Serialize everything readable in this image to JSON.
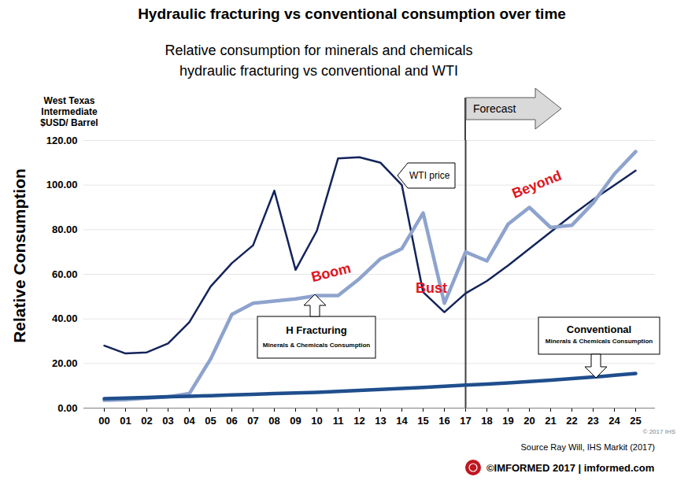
{
  "chart_data": {
    "type": "line",
    "title": "Hydraulic fracturing vs conventional consumption over time",
    "subtitle": "Relative consumption for minerals and chemicals\nhydraulic fracturing vs conventional and WTI",
    "ylabel": "Relative Consumption",
    "categories": [
      "00",
      "01",
      "02",
      "03",
      "04",
      "05",
      "06",
      "07",
      "08",
      "09",
      "10",
      "11",
      "12",
      "13",
      "14",
      "15",
      "16",
      "17",
      "18",
      "19",
      "20",
      "21",
      "22",
      "23",
      "24",
      "25"
    ],
    "series": [
      {
        "name": "WTI price",
        "color": "#13245a",
        "line_style": "solid",
        "values": [
          28,
          24.5,
          25,
          29,
          38.5,
          54.5,
          65,
          73,
          97.5,
          62,
          79.5,
          112,
          112.5,
          110,
          100,
          52,
          43,
          51.5,
          57,
          64,
          71.5,
          79,
          86.5,
          93.5,
          100,
          106.5
        ]
      },
      {
        "name": "H Fracturing",
        "color": "#8ea3cd",
        "line_style": "solid",
        "values": [
          3.5,
          3.8,
          4.5,
          5,
          6.5,
          22,
          42,
          47,
          48,
          49,
          50.5,
          50.5,
          58,
          67,
          71.5,
          87.5,
          47,
          70,
          66,
          82.5,
          90,
          81,
          82,
          92,
          105,
          115
        ]
      },
      {
        "name": "Conventional",
        "color": "#1f4e8c",
        "line_style": "solid",
        "values": [
          4.2,
          4.5,
          4.8,
          5.1,
          5.3,
          5.6,
          5.9,
          6.2,
          6.5,
          6.8,
          7.1,
          7.5,
          7.9,
          8.4,
          8.8,
          9.3,
          9.8,
          10.3,
          10.8,
          11.3,
          11.9,
          12.5,
          13.2,
          13.9,
          14.7,
          15.5
        ]
      }
    ],
    "ylim": [
      0,
      120
    ],
    "yticks": [
      {
        "value": 0,
        "label": "0.00"
      },
      {
        "value": 20,
        "label": "20.00"
      },
      {
        "value": 40,
        "label": "40.00"
      },
      {
        "value": 60,
        "label": "60.00"
      },
      {
        "value": 80,
        "label": "80.00"
      },
      {
        "value": 100,
        "label": "100.00"
      },
      {
        "value": 120,
        "label": "120.00"
      }
    ],
    "grid": true,
    "forecast_start": "17",
    "annotations": {
      "wti_axis": "West Texas\nIntermediate\n$USD/ Barrel",
      "forecast": "Forecast",
      "boom": "Boom",
      "bust": "Bust",
      "beyond": "Beyond",
      "h_fracturing_note": "Minerals & Chemicals Consumption",
      "conventional_note": "Minerals & Chemicals Consumption",
      "copyright": "© 2017 IHS",
      "source": "Source Ray Will, IHS Markit (2017)",
      "brand": "©IMFORMED 2017 | imformed.com"
    }
  }
}
